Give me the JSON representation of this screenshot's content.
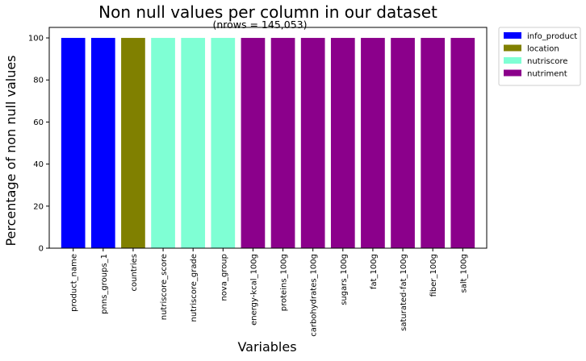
{
  "chart_data": {
    "type": "bar",
    "title": "Non null values per column in our dataset",
    "subtitle": "(nrows = 145,053)",
    "xlabel": "Variables",
    "ylabel": "Percentage of non null values",
    "ylim": [
      0,
      105
    ],
    "yticks": [
      0,
      20,
      40,
      60,
      80,
      100
    ],
    "grid": false,
    "legend_position": "outside top-right",
    "categories": [
      "product_name",
      "pnns_groups_1",
      "countries",
      "nutriscore_score",
      "nutriscore_grade",
      "nova_group",
      "energy-kcal_100g",
      "proteins_100g",
      "carbohydrates_100g",
      "sugars_100g",
      "fat_100g",
      "saturated-fat_100g",
      "fiber_100g",
      "salt_100g"
    ],
    "values": [
      100,
      100,
      100,
      100,
      100,
      100,
      100,
      100,
      100,
      100,
      100,
      100,
      100,
      100
    ],
    "groups": [
      "info_product",
      "info_product",
      "location",
      "nutriscore",
      "nutriscore",
      "nutriscore",
      "nutriment",
      "nutriment",
      "nutriment",
      "nutriment",
      "nutriment",
      "nutriment",
      "nutriment",
      "nutriment"
    ],
    "legend": [
      {
        "label": "info_product",
        "color": "#0000ff"
      },
      {
        "label": "location",
        "color": "#808000"
      },
      {
        "label": "nutriscore",
        "color": "#7fffd4"
      },
      {
        "label": "nutriment",
        "color": "#8b008b"
      }
    ]
  }
}
